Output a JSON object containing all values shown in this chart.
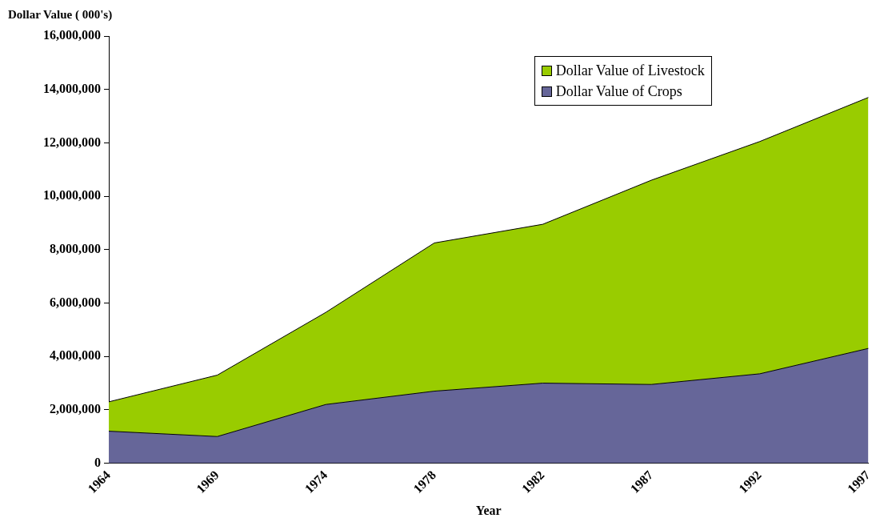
{
  "chart_data": {
    "type": "area",
    "ylabel": "Dollar Value ( 000's)",
    "xlabel": "Year",
    "categories": [
      "1964",
      "1969",
      "1974",
      "1978",
      "1982",
      "1987",
      "1992",
      "1997"
    ],
    "stacked": true,
    "series": [
      {
        "name": "Dollar Value of Crops",
        "color": "#666699",
        "values": [
          1200000,
          1000000,
          2200000,
          2700000,
          3000000,
          2950000,
          3350000,
          4300000
        ]
      },
      {
        "name": "Dollar Value of Livestock",
        "color": "#99cc00",
        "values": [
          1100000,
          2300000,
          3450000,
          5550000,
          5950000,
          7650000,
          8700000,
          9400000
        ]
      }
    ],
    "ylim": [
      0,
      16000000
    ],
    "yticks": [
      0,
      {
        "value": 2000000,
        "label": "2,000,000"
      },
      {
        "value": 4000000,
        "label": "4,000,000"
      },
      {
        "value": 6000000,
        "label": "6,000,000"
      },
      {
        "value": 8000000,
        "label": "8,000,000"
      },
      {
        "value": 10000000,
        "label": "10,000,000"
      },
      {
        "value": 12000000,
        "label": "12,000,000"
      },
      {
        "value": 14000000,
        "label": "14,000,000"
      },
      {
        "value": 16000000,
        "label": "16,000,000"
      }
    ],
    "grid": false,
    "legend": "top right"
  }
}
